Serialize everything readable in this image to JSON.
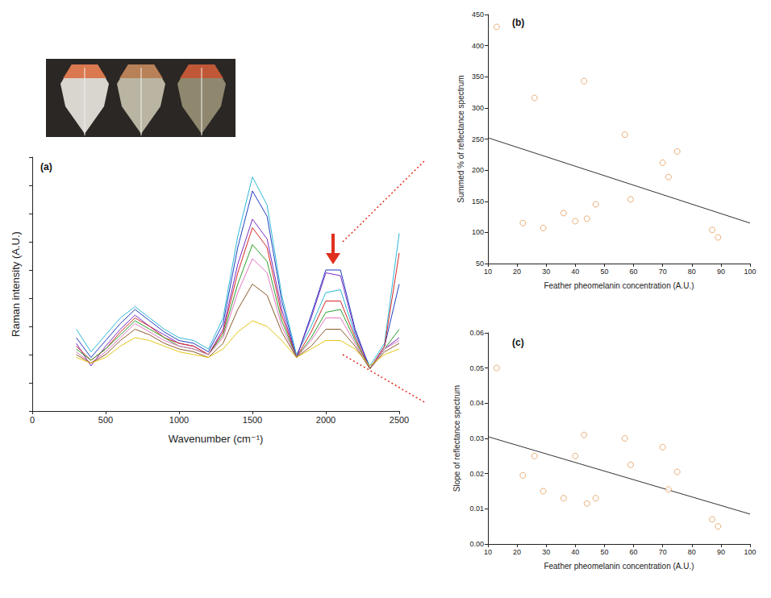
{
  "chart_data": [
    {
      "type": "line",
      "panel": "(a)",
      "xlabel": "Wavenumber (cm⁻¹)",
      "ylabel": "Raman intensity (A.U.)",
      "x": [
        300,
        400,
        500,
        600,
        700,
        800,
        900,
        1000,
        1100,
        1200,
        1300,
        1400,
        1500,
        1600,
        1700,
        1800,
        1900,
        2000,
        2100,
        2200,
        2300,
        2400,
        2500
      ],
      "series": [
        {
          "color": "#2fb8d6",
          "values": [
            2.9,
            2.1,
            2.7,
            3.3,
            3.7,
            3.3,
            2.9,
            2.6,
            2.5,
            2.2,
            3.3,
            6.2,
            8.3,
            7.3,
            4.1,
            2.0,
            3.0,
            4.2,
            4.3,
            2.7,
            1.6,
            2.4,
            6.3
          ]
        },
        {
          "color": "#1f3fbf",
          "values": [
            2.6,
            1.9,
            2.5,
            3.1,
            3.6,
            3.2,
            2.8,
            2.5,
            2.4,
            2.1,
            3.1,
            5.8,
            7.8,
            6.9,
            3.9,
            1.9,
            3.4,
            5.0,
            5.0,
            2.9,
            1.5,
            2.3,
            4.5
          ]
        },
        {
          "color": "#7b2cbf",
          "values": [
            2.4,
            1.6,
            2.3,
            2.9,
            3.4,
            3.0,
            2.7,
            2.4,
            2.3,
            2.0,
            2.9,
            5.2,
            6.8,
            6.1,
            3.6,
            1.9,
            3.3,
            4.9,
            4.8,
            2.8,
            1.5,
            2.2,
            2.6
          ]
        },
        {
          "color": "#d62728",
          "values": [
            2.3,
            1.8,
            2.2,
            2.8,
            3.3,
            3.0,
            2.6,
            2.4,
            2.3,
            2.0,
            2.8,
            4.9,
            6.5,
            5.8,
            3.4,
            1.9,
            2.8,
            3.9,
            3.9,
            2.6,
            1.5,
            2.3,
            5.6
          ]
        },
        {
          "color": "#2ca02c",
          "values": [
            2.2,
            1.8,
            2.2,
            2.7,
            3.2,
            2.9,
            2.6,
            2.3,
            2.2,
            2.0,
            2.7,
            4.5,
            5.9,
            5.3,
            3.2,
            1.9,
            2.6,
            3.5,
            3.6,
            2.5,
            1.5,
            2.2,
            2.9
          ]
        },
        {
          "color": "#e377c2",
          "values": [
            2.1,
            1.7,
            2.1,
            2.6,
            3.1,
            2.8,
            2.5,
            2.3,
            2.2,
            2.0,
            2.6,
            4.2,
            5.4,
            4.9,
            3.0,
            1.9,
            2.5,
            3.3,
            3.3,
            2.4,
            1.5,
            2.2,
            2.5
          ]
        },
        {
          "color": "#8b5a2b",
          "values": [
            2.0,
            1.7,
            2.0,
            2.5,
            2.9,
            2.7,
            2.4,
            2.2,
            2.1,
            1.9,
            2.4,
            3.6,
            4.5,
            4.1,
            2.8,
            1.9,
            2.3,
            2.9,
            2.9,
            2.3,
            1.5,
            2.1,
            2.4
          ]
        },
        {
          "color": "#e6c619",
          "values": [
            1.9,
            1.7,
            1.9,
            2.3,
            2.6,
            2.5,
            2.3,
            2.1,
            2.0,
            1.9,
            2.2,
            2.8,
            3.2,
            3.0,
            2.5,
            1.9,
            2.2,
            2.5,
            2.5,
            2.2,
            1.6,
            2.0,
            2.2
          ]
        }
      ],
      "xlim": [
        0,
        2500
      ],
      "xticks": [
        0,
        500,
        1000,
        1500,
        2000,
        2500
      ],
      "ylim": [
        0,
        9
      ],
      "yticks": [
        0,
        1,
        2,
        3,
        4,
        5,
        6,
        7,
        8,
        9
      ],
      "tick_labels": "x",
      "grid": false
    },
    {
      "type": "scatter",
      "panel": "(b)",
      "xlabel": "Feather pheomelanin concentration (A.U.)",
      "ylabel": "Summed % of reflectance spectrum",
      "x": [
        13,
        22,
        26,
        29,
        36,
        40,
        43,
        44,
        47,
        57,
        59,
        70,
        72,
        75,
        87,
        89
      ],
      "values": [
        430,
        115,
        316,
        107,
        131,
        118,
        343,
        122,
        145,
        257,
        153,
        212,
        189,
        230,
        104,
        92
      ],
      "color": "#e39a55",
      "marker": "circle_open",
      "trend": {
        "x": [
          10,
          100
        ],
        "values": [
          252,
          115
        ],
        "color": "#333333"
      },
      "xlim": [
        10,
        100
      ],
      "xticks": [
        10,
        20,
        30,
        40,
        50,
        60,
        70,
        80,
        90,
        100
      ],
      "ylim": [
        50,
        450
      ],
      "yticks": [
        50,
        100,
        150,
        200,
        250,
        300,
        350,
        400,
        450
      ],
      "grid": false
    },
    {
      "type": "scatter",
      "panel": "(c)",
      "xlabel": "Feather pheomelanin concentration (A.U.)",
      "ylabel": "Slope of reflectance spectrum",
      "x": [
        13,
        22,
        26,
        29,
        36,
        40,
        43,
        44,
        47,
        57,
        59,
        70,
        72,
        75,
        87,
        89
      ],
      "values": [
        0.05,
        0.0195,
        0.025,
        0.015,
        0.013,
        0.025,
        0.031,
        0.0115,
        0.013,
        0.03,
        0.0225,
        0.0275,
        0.0155,
        0.0205,
        0.007,
        0.005
      ],
      "color": "#e39a55",
      "marker": "circle_open",
      "trend": {
        "x": [
          10,
          100
        ],
        "values": [
          0.0305,
          0.0085
        ],
        "color": "#333333"
      },
      "xlim": [
        10,
        100
      ],
      "xticks": [
        10,
        20,
        30,
        40,
        50,
        60,
        70,
        80,
        90,
        100
      ],
      "ylim": [
        0,
        0.06
      ],
      "yticks": [
        {
          "value": 0,
          "label": "0.00"
        },
        0.01,
        0.02,
        0.03,
        0.04,
        0.05,
        0.06
      ],
      "grid": false
    }
  ]
}
